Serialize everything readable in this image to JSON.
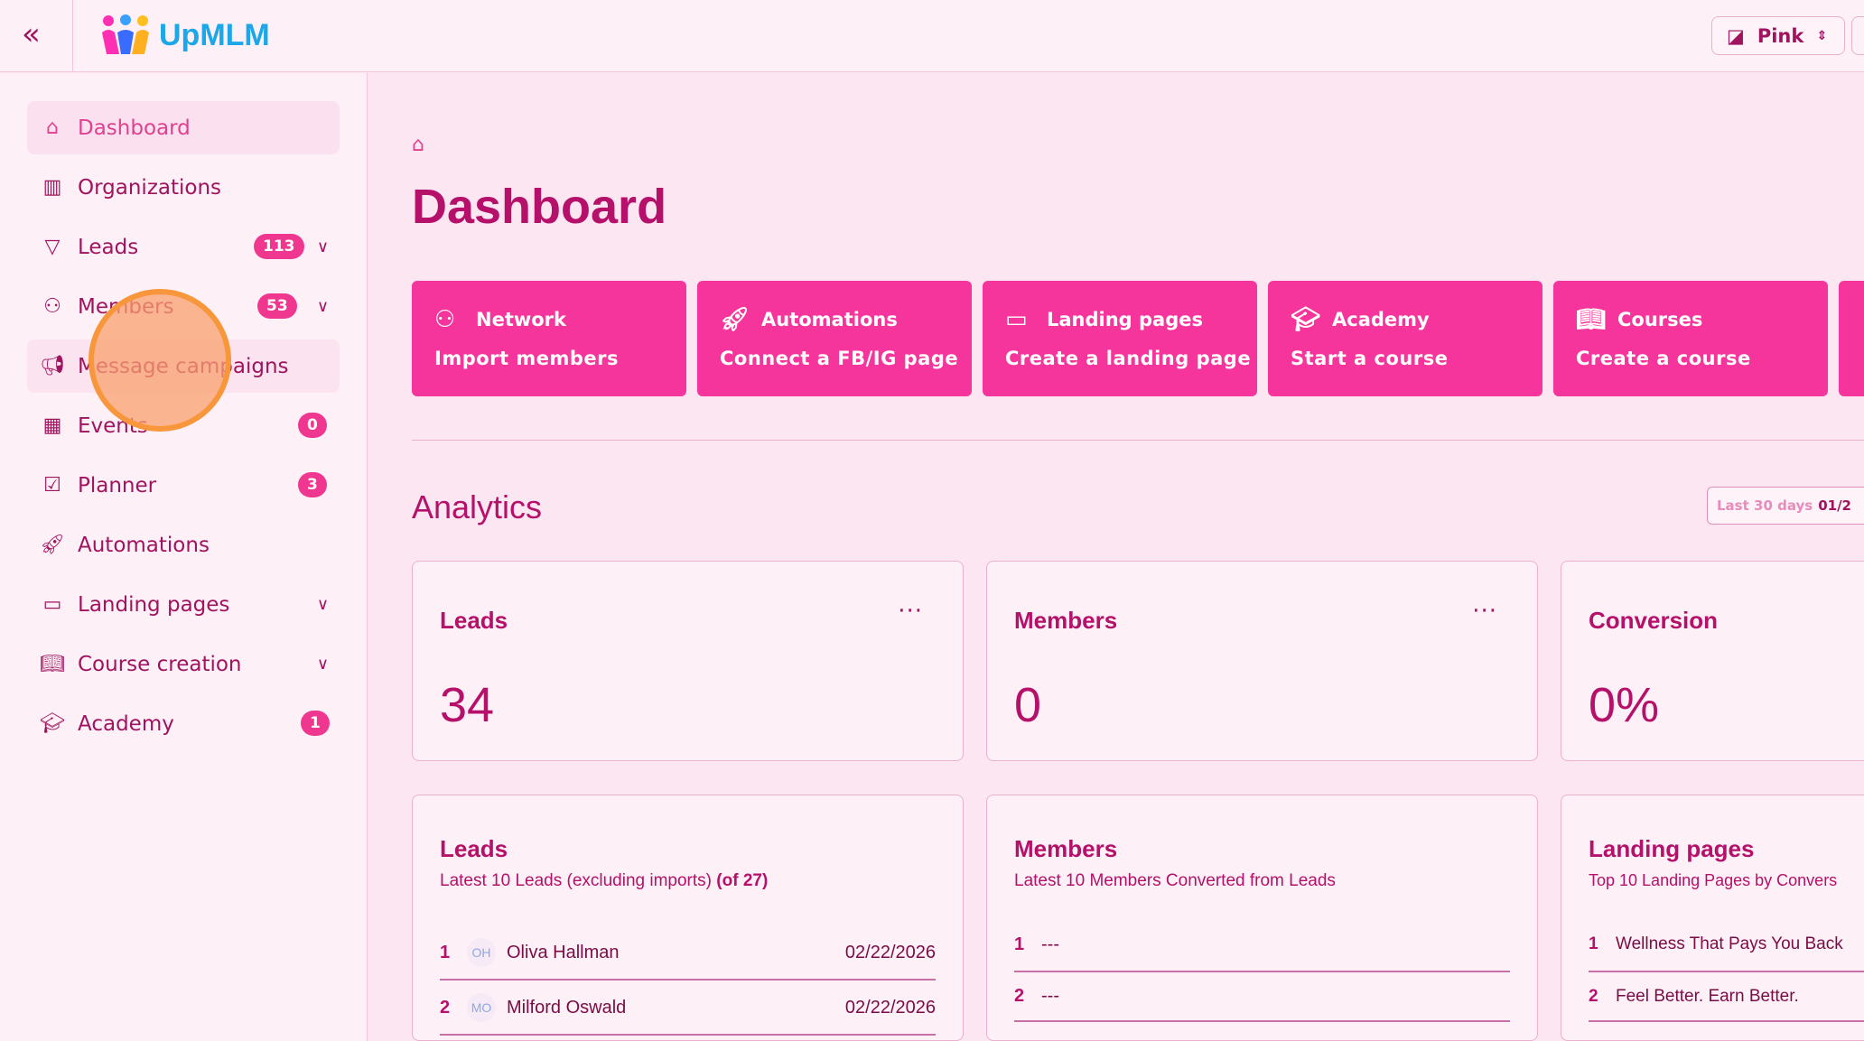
{
  "header": {
    "brand": "UpMLM",
    "theme_label": "Pink"
  },
  "sidebar": {
    "items": [
      {
        "label": "Dashboard",
        "icon": "home-icon"
      },
      {
        "label": "Organizations",
        "icon": "building-icon"
      },
      {
        "label": "Leads",
        "icon": "funnel-icon",
        "badge": "113",
        "expandable": true
      },
      {
        "label": "Members",
        "icon": "users-icon",
        "badge": "53",
        "expandable": true
      },
      {
        "label": "Message campaigns",
        "icon": "megaphone-icon"
      },
      {
        "label": "Events",
        "icon": "calendar-icon",
        "badge": "0"
      },
      {
        "label": "Planner",
        "icon": "clipboard-icon",
        "badge": "3"
      },
      {
        "label": "Automations",
        "icon": "rocket-icon"
      },
      {
        "label": "Landing pages",
        "icon": "monitor-icon",
        "expandable": true
      },
      {
        "label": "Course creation",
        "icon": "book-icon",
        "expandable": true
      },
      {
        "label": "Academy",
        "icon": "graduation-cap-icon",
        "badge": "1"
      }
    ]
  },
  "main": {
    "title": "Dashboard",
    "actions": [
      {
        "title": "Network",
        "subtitle": "Import members",
        "icon": "users-icon"
      },
      {
        "title": "Automations",
        "subtitle": "Connect a FB/IG page",
        "icon": "rocket-icon"
      },
      {
        "title": "Landing pages",
        "subtitle": "Create a landing page",
        "icon": "monitor-icon"
      },
      {
        "title": "Academy",
        "subtitle": "Start a course",
        "icon": "graduation-cap-icon"
      },
      {
        "title": "Courses",
        "subtitle": "Create a course",
        "icon": "book-icon"
      }
    ],
    "analytics_title": "Analytics",
    "range": {
      "label": "Last 30 days",
      "value": "01/2"
    },
    "stats": [
      {
        "title": "Leads",
        "value": "34"
      },
      {
        "title": "Members",
        "value": "0"
      },
      {
        "title": "Conversion",
        "value": "0%"
      }
    ],
    "lists": [
      {
        "title": "Leads",
        "subtitle": "Latest 10 Leads (excluding imports)",
        "subtitle_bold": "(of 27)",
        "rows": [
          {
            "n": "1",
            "initials": "OH",
            "name": "Oliva Hallman",
            "date": "02/22/2026"
          },
          {
            "n": "2",
            "initials": "MO",
            "name": "Milford Oswald",
            "date": "02/22/2026"
          }
        ]
      },
      {
        "title": "Members",
        "subtitle": "Latest 10 Members Converted from Leads",
        "rows": [
          {
            "n": "1",
            "name": "---"
          },
          {
            "n": "2",
            "name": "---"
          }
        ]
      },
      {
        "title": "Landing pages",
        "subtitle": "Top 10 Landing Pages by Convers",
        "rows": [
          {
            "n": "1",
            "name": "Wellness That Pays You Back"
          },
          {
            "n": "2",
            "name": "Feel Better. Earn Better."
          }
        ]
      }
    ]
  },
  "colors": {
    "accent": "#f5359b",
    "text": "#b5106a",
    "background": "#fce6f2"
  }
}
